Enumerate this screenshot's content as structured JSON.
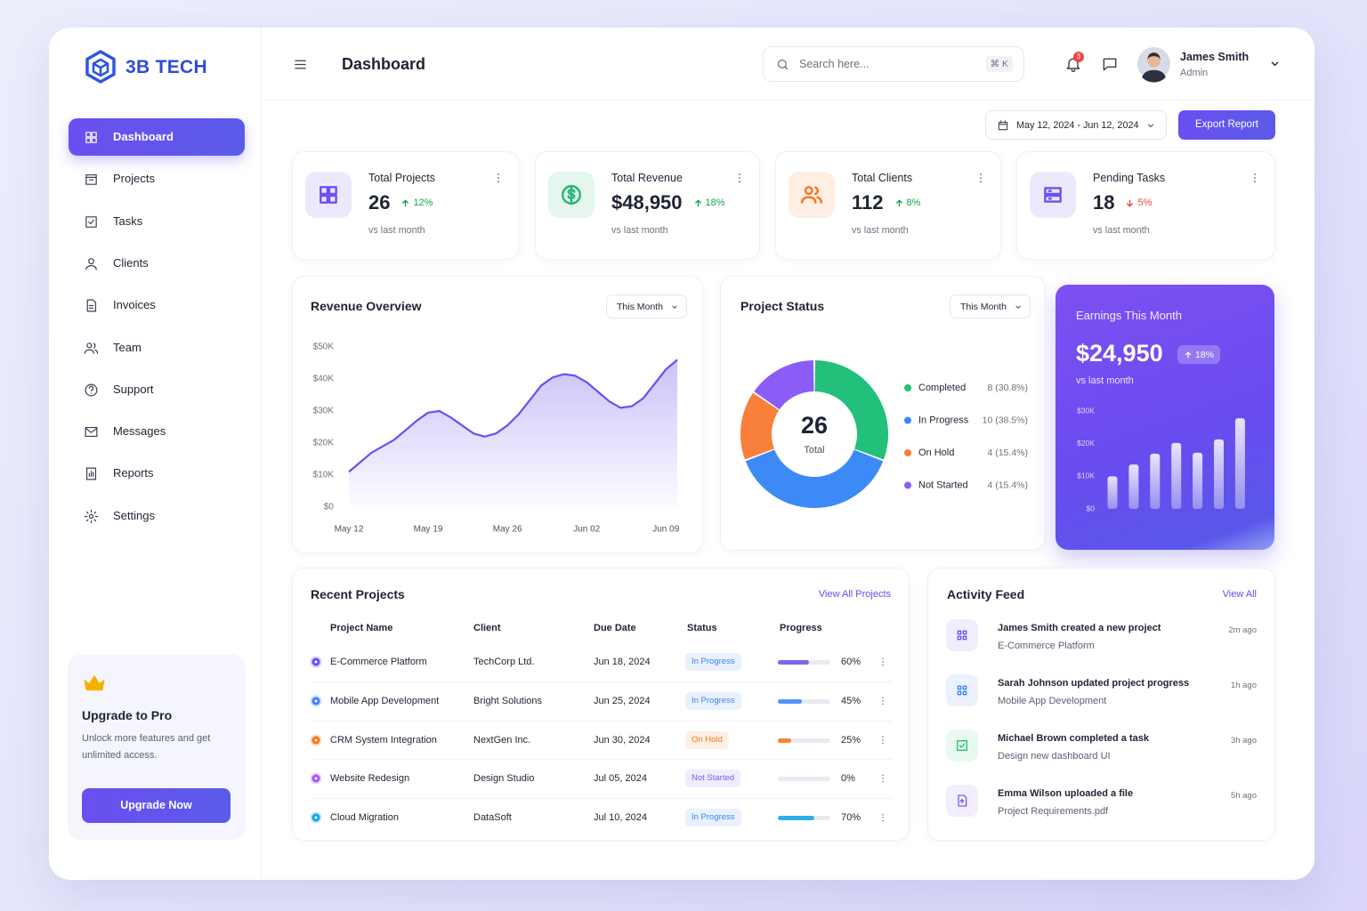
{
  "brand": "3B TECH",
  "sidebar": {
    "items": [
      "Dashboard",
      "Projects",
      "Tasks",
      "Clients",
      "Invoices",
      "Team",
      "Support",
      "Messages",
      "Reports",
      "Settings"
    ],
    "active": 0
  },
  "upgrade": {
    "title": "Upgrade to Pro",
    "text": "Unlock more features and get unlimited access.",
    "button": "Upgrade Now"
  },
  "header": {
    "title": "Dashboard",
    "search_placeholder": "Search here...",
    "shortcut": "⌘ K",
    "notifications": 3,
    "user": {
      "name": "James Smith",
      "role": "Admin"
    }
  },
  "date_range": "May 12, 2024 - Jun 12, 2024",
  "export_button": "Export Report",
  "kpis": [
    {
      "label": "Total Projects",
      "value": "26",
      "change": "12%",
      "trend": "up",
      "note": "vs last month",
      "color": "#6d4ef0"
    },
    {
      "label": "Total Revenue",
      "value": "$48,950",
      "change": "18%",
      "trend": "up",
      "note": "vs last month",
      "color": "#22b573"
    },
    {
      "label": "Total Clients",
      "value": "112",
      "change": "8%",
      "trend": "up",
      "note": "vs last month",
      "color": "#f97316"
    },
    {
      "label": "Pending Tasks",
      "value": "18",
      "change": "5%",
      "trend": "down",
      "note": "vs last month",
      "color": "#6d4ef0"
    }
  ],
  "chart_data": [
    {
      "type": "line",
      "title": "Revenue Overview",
      "period": "This Month",
      "categories": [
        "May 12",
        null,
        null,
        null,
        null,
        null,
        null,
        "May 19",
        null,
        null,
        null,
        null,
        null,
        null,
        "May 26",
        null,
        null,
        null,
        null,
        null,
        null,
        "Jun 02",
        null,
        null,
        null,
        null,
        null,
        null,
        "Jun 09",
        null
      ],
      "values": [
        11000,
        14000,
        17000,
        19000,
        21000,
        24000,
        27000,
        29500,
        30000,
        28000,
        25500,
        23000,
        22000,
        23000,
        25500,
        29000,
        33500,
        38000,
        40500,
        41500,
        41000,
        39000,
        36000,
        33000,
        31000,
        31500,
        34000,
        38500,
        43000,
        46000
      ],
      "color": "#6d4ef0",
      "ylim": [
        0,
        50000
      ],
      "yticks": [
        {
          "value": 0,
          "label": "$0"
        },
        {
          "value": 10000,
          "label": "$10K"
        },
        {
          "value": 20000,
          "label": "$20K"
        },
        {
          "value": 30000,
          "label": "$30K"
        },
        {
          "value": 40000,
          "label": "$40K"
        },
        {
          "value": 50000,
          "label": "$50K"
        }
      ]
    },
    {
      "type": "donut",
      "title": "Project Status",
      "period": "This Month",
      "total": 26,
      "total_label": "Total",
      "categories": [
        "Completed",
        "In Progress",
        "On Hold",
        "Not Started"
      ],
      "values": [
        8,
        10,
        4,
        4
      ],
      "value_labels": [
        "8 (30.8%)",
        "10 (38.5%)",
        "4 (15.4%)",
        "4 (15.4%)"
      ],
      "colors": [
        "#22c07a",
        "#3b8af6",
        "#f9803a",
        "#8b5cf6"
      ]
    },
    {
      "type": "bar",
      "title": "Earnings This Month",
      "value": "$24,950",
      "change": "18%",
      "note": "vs last month",
      "categories": [
        null,
        null,
        null,
        null,
        null,
        null,
        null
      ],
      "values": [
        10000,
        13600,
        16900,
        20200,
        17200,
        21300,
        27800
      ],
      "color": "#ffffff",
      "ylim": [
        0,
        30000
      ],
      "yticks": [
        {
          "value": 0,
          "label": "$0"
        },
        {
          "value": 10000,
          "label": "$10K"
        },
        {
          "value": 20000,
          "label": "$20K"
        },
        {
          "value": 30000,
          "label": "$30K"
        }
      ]
    }
  ],
  "recent_projects": {
    "title": "Recent Projects",
    "link": "View All Projects",
    "columns": [
      "Project Name",
      "Client",
      "Due Date",
      "Status",
      "Progress"
    ],
    "rows": [
      {
        "name": "E-Commerce Platform",
        "client": "TechCorp Ltd.",
        "due": "Jun 18, 2024",
        "status": "In Progress",
        "progress": 60,
        "progress_label": "60%",
        "color": "#6d4ef0",
        "status_color": "#3b82f6"
      },
      {
        "name": "Mobile App Development",
        "client": "Bright Solutions",
        "due": "Jun 25, 2024",
        "status": "In Progress",
        "progress": 45,
        "progress_label": "45%",
        "color": "#3b82f6",
        "status_color": "#3b82f6"
      },
      {
        "name": "CRM System Integration",
        "client": "NextGen Inc.",
        "due": "Jun 30, 2024",
        "status": "On Hold",
        "progress": 25,
        "progress_label": "25%",
        "color": "#f97316",
        "status_color": "#f97316"
      },
      {
        "name": "Website Redesign",
        "client": "Design Studio",
        "due": "Jul 05, 2024",
        "status": "Not Started",
        "progress": 0,
        "progress_label": "0%",
        "color": "#a855f7",
        "status_color": "#7c5cf2"
      },
      {
        "name": "Cloud Migration",
        "client": "DataSoft",
        "due": "Jul 10, 2024",
        "status": "In Progress",
        "progress": 70,
        "progress_label": "70%",
        "color": "#0ea5e9",
        "status_color": "#3b82f6"
      }
    ]
  },
  "activity": {
    "title": "Activity Feed",
    "link": "View All",
    "items": [
      {
        "title": "James Smith created a new project",
        "detail": "E-Commerce Platform",
        "time": "2m ago",
        "color": "#6d4ef0"
      },
      {
        "title": "Sarah Johnson updated project progress",
        "detail": "Mobile App Development",
        "time": "1h ago",
        "color": "#3b82f6"
      },
      {
        "title": "Michael Brown completed a task",
        "detail": "Design new dashboard UI",
        "time": "3h ago",
        "color": "#22c55e"
      },
      {
        "title": "Emma Wilson uploaded a file",
        "detail": "Project Requirements.pdf",
        "time": "5h ago",
        "color": "#7c5cf2"
      }
    ]
  }
}
